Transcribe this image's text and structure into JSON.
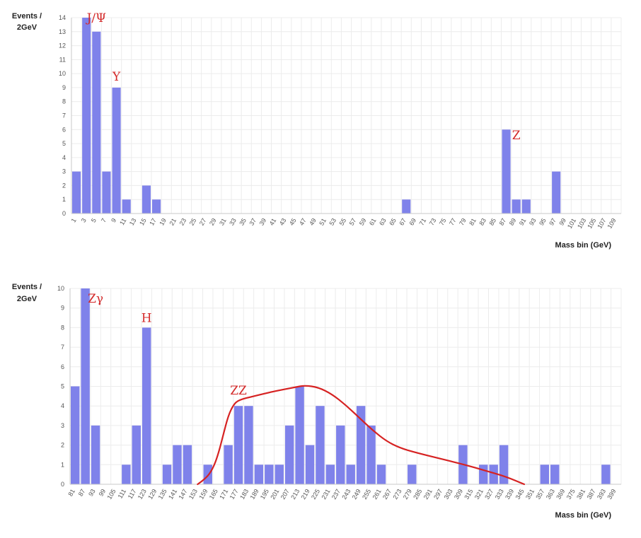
{
  "colors": {
    "bar": "#7f82ea",
    "grid": "#ececec",
    "axis": "#c8c8c8",
    "annotation": "#d42a2a",
    "curve": "#d62222"
  },
  "chart_data": [
    {
      "type": "bar",
      "ylabel": [
        "Events /",
        "2GeV"
      ],
      "xlabel": "Mass bin (GeV)",
      "ylim": [
        0,
        14
      ],
      "yticks": [
        0,
        1,
        2,
        3,
        4,
        5,
        6,
        7,
        8,
        9,
        10,
        11,
        12,
        13,
        14
      ],
      "grid": true,
      "categories": [
        "1",
        "3",
        "5",
        "7",
        "9",
        "11",
        "13",
        "15",
        "17",
        "19",
        "21",
        "23",
        "25",
        "27",
        "29",
        "31",
        "33",
        "35",
        "37",
        "39",
        "41",
        "43",
        "45",
        "47",
        "49",
        "51",
        "53",
        "55",
        "57",
        "59",
        "61",
        "63",
        "65",
        "67",
        "69",
        "71",
        "73",
        "75",
        "77",
        "79",
        "81",
        "83",
        "85",
        "87",
        "89",
        "91",
        "93",
        "95",
        "97",
        "99",
        "101",
        "103",
        "105",
        "107",
        "109"
      ],
      "values": [
        3,
        14,
        13,
        3,
        9,
        1,
        0,
        2,
        1,
        0,
        0,
        0,
        0,
        0,
        0,
        0,
        0,
        0,
        0,
        0,
        0,
        0,
        0,
        0,
        0,
        0,
        0,
        0,
        0,
        0,
        0,
        0,
        0,
        1,
        0,
        0,
        0,
        0,
        0,
        0,
        0,
        0,
        0,
        6,
        1,
        1,
        0,
        0,
        3,
        0,
        0,
        0,
        0,
        0,
        0
      ],
      "annotations": [
        {
          "label": "J/Ψ",
          "category": "5",
          "y": 14.0
        },
        {
          "label": "Υ",
          "category": "9",
          "y": 9.8
        },
        {
          "label": "Z",
          "category": "89",
          "y": 5.6
        }
      ]
    },
    {
      "type": "bar",
      "ylabel": [
        "Events /",
        "2GeV"
      ],
      "xlabel": "Mass bin (GeV)",
      "ylim": [
        0,
        10
      ],
      "yticks": [
        0,
        1,
        2,
        3,
        4,
        5,
        6,
        7,
        8,
        9,
        10
      ],
      "grid": true,
      "categories": [
        "81",
        "87",
        "93",
        "99",
        "105",
        "111",
        "117",
        "123",
        "129",
        "135",
        "141",
        "147",
        "153",
        "159",
        "165",
        "171",
        "177",
        "183",
        "189",
        "195",
        "201",
        "207",
        "213",
        "219",
        "225",
        "231",
        "237",
        "243",
        "249",
        "255",
        "261",
        "267",
        "273",
        "279",
        "285",
        "291",
        "297",
        "303",
        "309",
        "315",
        "321",
        "327",
        "333",
        "339",
        "345",
        "351",
        "357",
        "363",
        "369",
        "375",
        "381",
        "387",
        "393",
        "399"
      ],
      "values": [
        5,
        10,
        3,
        0,
        0,
        1,
        3,
        8,
        0,
        1,
        2,
        2,
        0,
        1,
        0,
        2,
        4,
        4,
        1,
        1,
        1,
        3,
        5,
        2,
        4,
        1,
        3,
        1,
        4,
        3,
        1,
        0,
        0,
        1,
        0,
        0,
        0,
        0,
        2,
        0,
        1,
        1,
        2,
        0,
        0,
        0,
        1,
        1,
        0,
        0,
        0,
        0,
        1,
        0
      ],
      "annotations": [
        {
          "label": "Zγ",
          "category": "93",
          "y": 9.5
        },
        {
          "label": "H",
          "category": "123",
          "y": 8.5
        },
        {
          "label": "ZZ",
          "category": "177",
          "y": 4.8
        }
      ],
      "curve": [
        [
          153,
          0.0
        ],
        [
          158,
          0.3
        ],
        [
          162,
          0.8
        ],
        [
          165,
          1.5
        ],
        [
          168,
          2.5
        ],
        [
          171,
          3.5
        ],
        [
          174,
          4.05
        ],
        [
          177,
          4.3
        ],
        [
          186,
          4.5
        ],
        [
          198,
          4.75
        ],
        [
          210,
          4.95
        ],
        [
          216,
          5.05
        ],
        [
          224,
          4.95
        ],
        [
          232,
          4.6
        ],
        [
          240,
          4.05
        ],
        [
          248,
          3.4
        ],
        [
          256,
          2.75
        ],
        [
          264,
          2.2
        ],
        [
          272,
          1.85
        ],
        [
          282,
          1.6
        ],
        [
          296,
          1.3
        ],
        [
          310,
          1.0
        ],
        [
          322,
          0.7
        ],
        [
          334,
          0.4
        ],
        [
          345,
          0.0
        ]
      ]
    }
  ]
}
